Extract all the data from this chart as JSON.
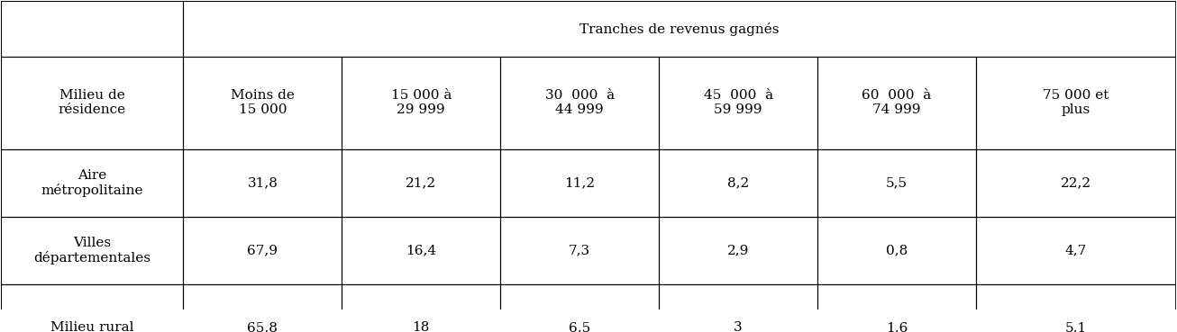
{
  "header_main_col": "Milieu de\nrésidence",
  "header_span": "Tranches de revenus gagnés",
  "col_headers": [
    "Moins de\n15 000",
    "15 000 à\n29 999",
    "30  000  à\n44 999",
    "45  000  à\n59 999",
    "60  000  à\n74 999",
    "75 000 et\nplus"
  ],
  "rows": [
    {
      "label": "Aire\nmétropolitaine",
      "values": [
        "31,8",
        "21,2",
        "11,2",
        "8,2",
        "5,5",
        "22,2"
      ]
    },
    {
      "label": "Villes\ndépartementales",
      "values": [
        "67,9",
        "16,4",
        "7,3",
        "2,9",
        "0,8",
        "4,7"
      ]
    },
    {
      "label": "Milieu rural",
      "values": [
        "65,8",
        "18",
        "6,5",
        "3",
        "1,6",
        "5,1"
      ]
    }
  ],
  "background_color": "#ffffff",
  "text_color": "#000000",
  "border_color": "#000000",
  "font_size": 11,
  "header_font_size": 11
}
